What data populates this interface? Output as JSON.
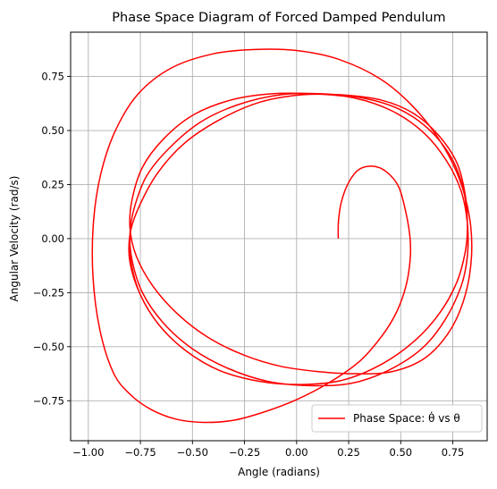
{
  "chart_data": {
    "type": "line",
    "title": "Phase Space Diagram of Forced Damped Pendulum",
    "xlabel": "Angle (radians)",
    "ylabel": "Angular Velocity (rad/s)",
    "xlim": [
      -1.085,
      0.915
    ],
    "ylim": [
      -0.935,
      0.955
    ],
    "xticks": [
      -1.0,
      -0.75,
      -0.5,
      -0.25,
      0.0,
      0.25,
      0.5,
      0.75
    ],
    "xtick_labels": [
      "−1.00",
      "−0.75",
      "−0.50",
      "−0.25",
      "0.00",
      "0.25",
      "0.50",
      "0.75"
    ],
    "yticks": [
      -0.75,
      -0.5,
      -0.25,
      0.0,
      0.25,
      0.5,
      0.75
    ],
    "ytick_labels": [
      "−0.75",
      "−0.50",
      "−0.25",
      "0.00",
      "0.25",
      "0.50",
      "0.75"
    ],
    "grid": true,
    "legend_position": "lower-right",
    "series": [
      {
        "name": "Phase Space: θ̇ vs θ",
        "color": "#ff0000",
        "x": [
          0.2,
          0.201,
          0.215,
          0.25,
          0.3,
          0.365,
          0.43,
          0.49,
          0.525,
          0.545,
          0.545,
          0.525,
          0.48,
          0.41,
          0.3,
          0.15,
          0.0,
          -0.15,
          -0.3,
          -0.45,
          -0.58,
          -0.7,
          -0.8,
          -0.88,
          -0.945,
          -0.978,
          -0.975,
          -0.94,
          -0.87,
          -0.76,
          -0.6,
          -0.4,
          -0.2,
          0.0,
          0.2,
          0.4,
          0.56,
          0.69,
          0.78,
          0.83,
          0.84,
          0.81,
          0.74,
          0.62,
          0.46,
          0.28,
          0.1,
          -0.08,
          -0.25,
          -0.42,
          -0.57,
          -0.69,
          -0.77,
          -0.8,
          -0.79,
          -0.74,
          -0.64,
          -0.5,
          -0.32,
          -0.12,
          0.08,
          0.28,
          0.46,
          0.61,
          0.72,
          0.79,
          0.82,
          0.82,
          0.79,
          0.71,
          0.6,
          0.44,
          0.26,
          0.06,
          -0.14,
          -0.33,
          -0.5,
          -0.64,
          -0.74,
          -0.79,
          -0.8,
          -0.78,
          -0.72,
          -0.61,
          -0.46,
          -0.28,
          -0.08,
          0.12,
          0.32,
          0.49,
          0.63,
          0.74,
          0.8,
          0.82,
          0.81,
          0.77,
          0.69,
          0.57,
          0.41,
          0.22,
          0.02,
          -0.18,
          -0.37,
          -0.53,
          -0.66,
          -0.75,
          -0.8,
          -0.8,
          -0.76,
          -0.67,
          -0.54,
          -0.37,
          -0.18,
          0.02,
          0.22,
          0.41,
          0.56,
          0.68,
          0.77,
          0.81,
          0.82,
          0.81,
          0.77,
          0.69,
          0.57,
          0.41,
          0.22,
          0.02,
          -0.18,
          -0.37,
          -0.53,
          -0.66,
          -0.75,
          -0.795,
          -0.8
        ],
        "y": [
          0.0,
          0.08,
          0.17,
          0.26,
          0.32,
          0.335,
          0.31,
          0.24,
          0.12,
          0.0,
          -0.1,
          -0.22,
          -0.34,
          -0.45,
          -0.57,
          -0.67,
          -0.745,
          -0.8,
          -0.84,
          -0.85,
          -0.835,
          -0.79,
          -0.72,
          -0.62,
          -0.42,
          -0.17,
          0.08,
          0.3,
          0.5,
          0.67,
          0.79,
          0.855,
          0.875,
          0.87,
          0.83,
          0.74,
          0.61,
          0.45,
          0.28,
          0.1,
          -0.08,
          -0.26,
          -0.42,
          -0.55,
          -0.615,
          -0.625,
          -0.615,
          -0.59,
          -0.54,
          -0.46,
          -0.35,
          -0.22,
          -0.08,
          0.05,
          0.18,
          0.33,
          0.46,
          0.57,
          0.64,
          0.67,
          0.67,
          0.65,
          0.59,
          0.49,
          0.36,
          0.22,
          0.07,
          -0.08,
          -0.22,
          -0.38,
          -0.51,
          -0.61,
          -0.67,
          -0.68,
          -0.66,
          -0.6,
          -0.51,
          -0.39,
          -0.25,
          -0.1,
          0.02,
          0.14,
          0.29,
          0.42,
          0.54,
          0.62,
          0.665,
          0.67,
          0.65,
          0.6,
          0.51,
          0.38,
          0.23,
          0.07,
          -0.06,
          -0.2,
          -0.34,
          -0.47,
          -0.58,
          -0.655,
          -0.675,
          -0.66,
          -0.61,
          -0.52,
          -0.4,
          -0.26,
          -0.11,
          0.02,
          0.14,
          0.3,
          0.44,
          0.55,
          0.63,
          0.665,
          0.665,
          0.64,
          0.58,
          0.48,
          0.35,
          0.2,
          0.05,
          -0.06,
          -0.2,
          -0.34,
          -0.47,
          -0.58,
          -0.655,
          -0.675,
          -0.66,
          -0.61,
          -0.52,
          -0.4,
          -0.26,
          -0.11,
          0.0
        ]
      }
    ]
  }
}
